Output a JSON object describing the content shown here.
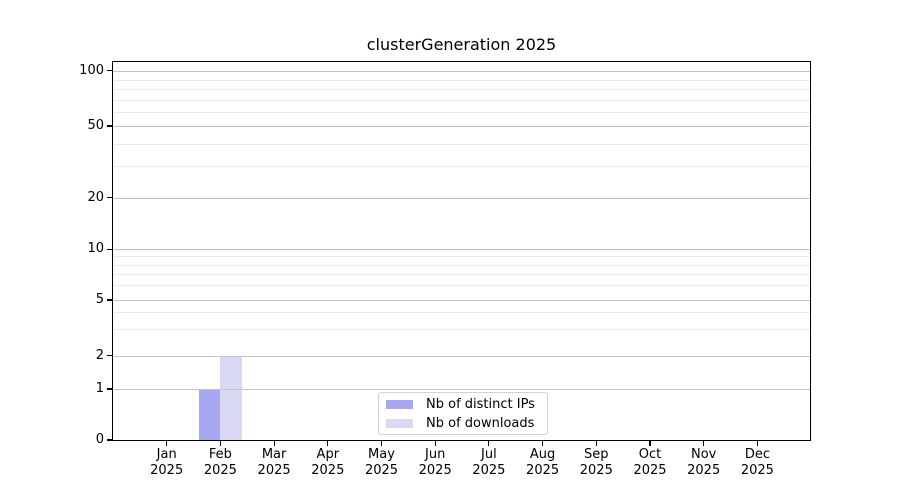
{
  "chart_data": {
    "type": "bar",
    "title": "clusterGeneration 2025",
    "categories": [
      "Jan 2025",
      "Feb 2025",
      "Mar 2025",
      "Apr 2025",
      "May 2025",
      "Jun 2025",
      "Jul 2025",
      "Aug 2025",
      "Sep 2025",
      "Oct 2025",
      "Nov 2025",
      "Dec 2025"
    ],
    "series": [
      {
        "name": "Nb of distinct IPs",
        "color": "#a8a8f2",
        "values": [
          0,
          1,
          0,
          0,
          0,
          0,
          0,
          0,
          0,
          0,
          0,
          0
        ]
      },
      {
        "name": "Nb of downloads",
        "color": "#d9d9f6",
        "values": [
          0,
          2,
          0,
          0,
          0,
          0,
          0,
          0,
          0,
          0,
          0,
          0
        ]
      }
    ],
    "yscale": "log1p",
    "ylim": [
      0,
      113
    ],
    "yticks": [
      0,
      1,
      2,
      5,
      10,
      20,
      50,
      100
    ],
    "yticks_minor": [
      3,
      4,
      6,
      7,
      8,
      9,
      30,
      40,
      60,
      70,
      80,
      90
    ],
    "grid": true,
    "legend_position": "lower center"
  },
  "legend": {
    "items": [
      {
        "label": "Nb of distinct IPs",
        "color": "#a8a8f2"
      },
      {
        "label": "Nb of downloads",
        "color": "#d9d9f6"
      }
    ]
  }
}
